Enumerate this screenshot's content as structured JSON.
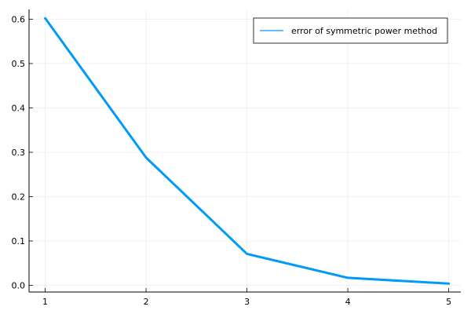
{
  "chart_data": {
    "type": "line",
    "title": "",
    "xlabel": "",
    "ylabel": "",
    "xlim": [
      0.84,
      5.12
    ],
    "ylim": [
      -0.015,
      0.622
    ],
    "x_ticks": [
      1,
      2,
      3,
      4,
      5
    ],
    "x_tick_labels": [
      "1",
      "2",
      "3",
      "4",
      "5"
    ],
    "y_ticks": [
      0.0,
      0.1,
      0.2,
      0.3,
      0.4,
      0.5,
      0.6
    ],
    "y_tick_labels": [
      "0.0",
      "0.1",
      "0.2",
      "0.3",
      "0.4",
      "0.5",
      "0.6"
    ],
    "grid": true,
    "legend_position": "top-right",
    "series": [
      {
        "name": "error of symmetric power method",
        "color": "#009af9",
        "x": [
          1,
          2,
          3,
          4,
          5
        ],
        "y": [
          0.602,
          0.288,
          0.071,
          0.017,
          0.004
        ]
      }
    ]
  }
}
